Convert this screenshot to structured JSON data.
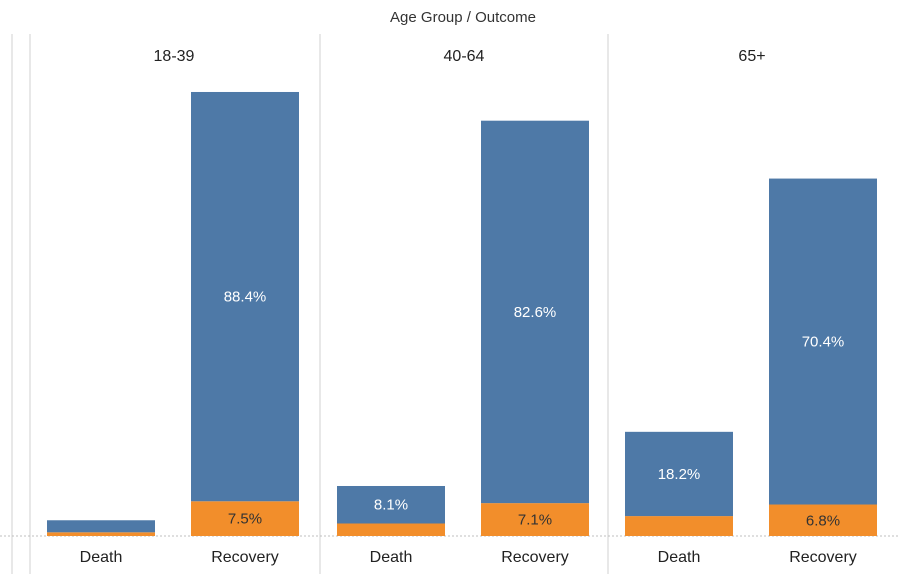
{
  "chart_data": {
    "type": "bar",
    "stacked": true,
    "title": "Age Group / Outcome",
    "header_parts": [
      "Age Group",
      "Outcome"
    ],
    "groups": [
      "18-39",
      "40-64",
      "65+"
    ],
    "categories": [
      "Death",
      "Recovery"
    ],
    "ylim": [
      0,
      100
    ],
    "grid": false,
    "legend": "none",
    "colors": {
      "top": "#4e79a7",
      "bottom": "#f28e2b",
      "divider": "#d0d0d0",
      "baseline": "#bfbfbf"
    },
    "series": [
      {
        "values": [
          [
            0.8,
            7.5
          ],
          [
            2.7,
            7.1
          ],
          [
            4.3,
            6.8
          ]
        ],
        "labels": [
          [
            "",
            "7.5%"
          ],
          [
            "",
            "7.1%"
          ],
          [
            "",
            "6.8%"
          ]
        ]
      },
      {
        "values": [
          [
            2.6,
            88.4
          ],
          [
            8.1,
            82.6
          ],
          [
            18.2,
            70.4
          ]
        ],
        "labels": [
          [
            "",
            "88.4%"
          ],
          [
            "8.1%",
            "82.6%"
          ],
          [
            "18.2%",
            "70.4%"
          ]
        ]
      }
    ]
  }
}
